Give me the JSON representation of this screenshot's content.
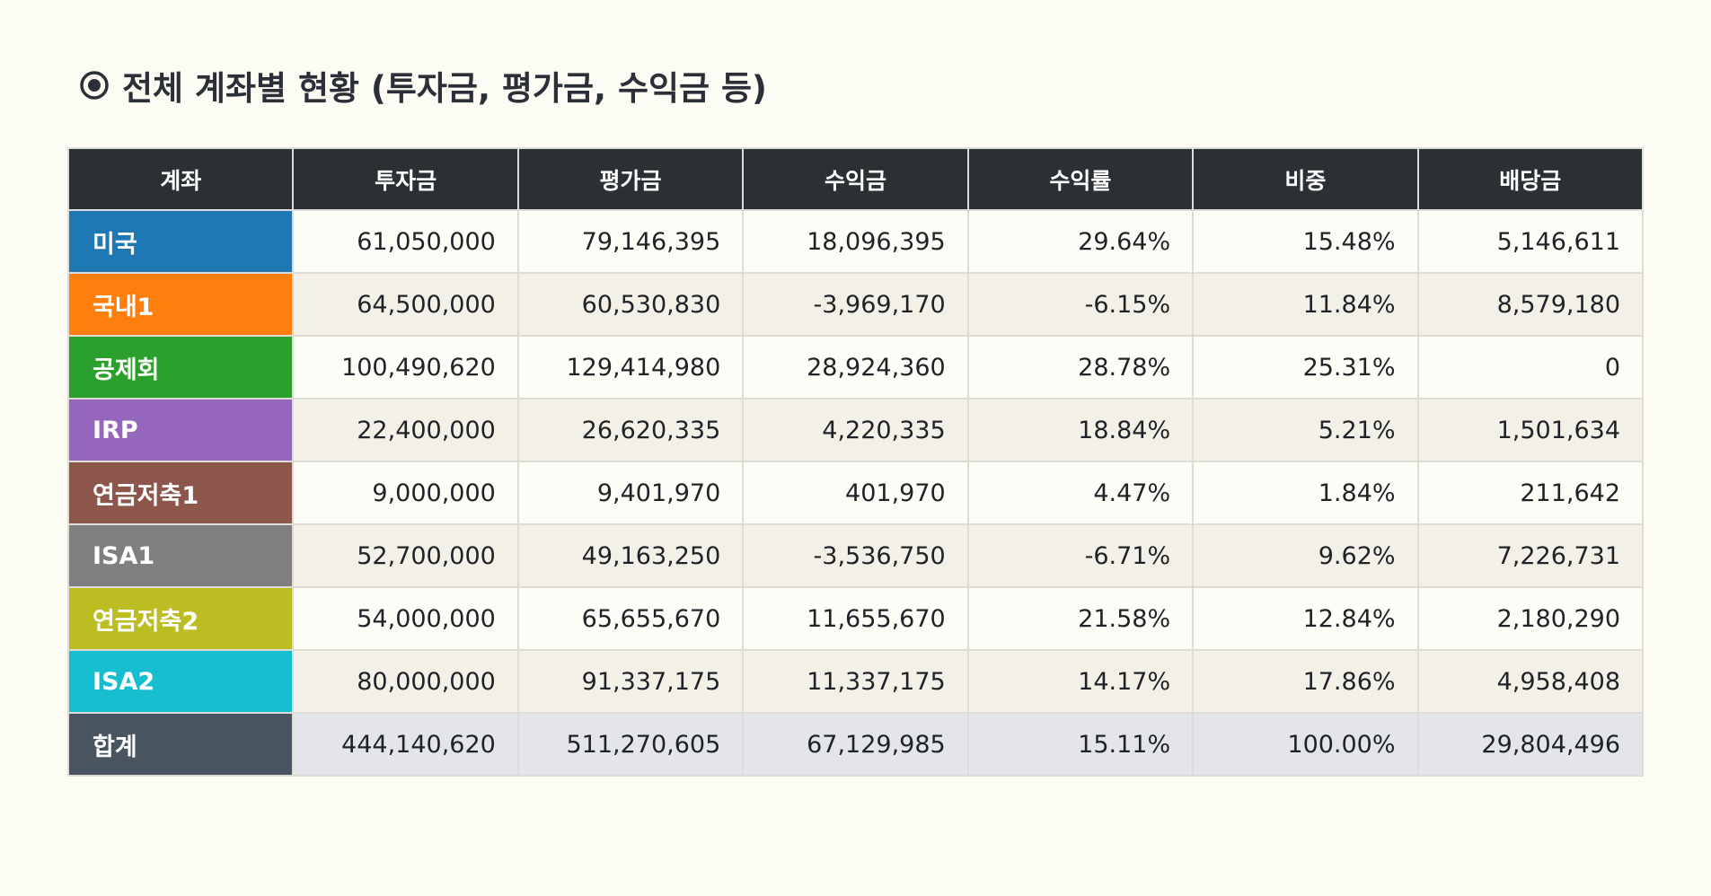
{
  "header": {
    "title": "전체 계좌별 현황 (투자금, 평가금, 수익금 등)"
  },
  "table": {
    "columns": [
      "계좌",
      "투자금",
      "평가금",
      "수익금",
      "수익률",
      "비중",
      "배당금"
    ],
    "rows": [
      [
        "미국",
        "61,050,000",
        "79,146,395",
        "18,096,395",
        "29.64%",
        "15.48%",
        "5,146,611"
      ],
      [
        "국내1",
        "64,500,000",
        "60,530,830",
        "-3,969,170",
        "-6.15%",
        "11.84%",
        "8,579,180"
      ],
      [
        "공제회",
        "100,490,620",
        "129,414,980",
        "28,924,360",
        "28.78%",
        "25.31%",
        "0"
      ],
      [
        "IRP",
        "22,400,000",
        "26,620,335",
        "4,220,335",
        "18.84%",
        "5.21%",
        "1,501,634"
      ],
      [
        "연금저축1",
        "9,000,000",
        "9,401,970",
        "401,970",
        "4.47%",
        "1.84%",
        "211,642"
      ],
      [
        "ISA1",
        "52,700,000",
        "49,163,250",
        "-3,536,750",
        "-6.71%",
        "9.62%",
        "7,226,731"
      ],
      [
        "연금저축2",
        "54,000,000",
        "65,655,670",
        "11,655,670",
        "21.58%",
        "12.84%",
        "2,180,290"
      ],
      [
        "ISA2",
        "80,000,000",
        "91,337,175",
        "11,337,175",
        "14.17%",
        "17.86%",
        "4,958,408"
      ],
      [
        "합계",
        "444,140,620",
        "511,270,605",
        "67,129,985",
        "15.11%",
        "100.00%",
        "29,804,496"
      ]
    ]
  }
}
